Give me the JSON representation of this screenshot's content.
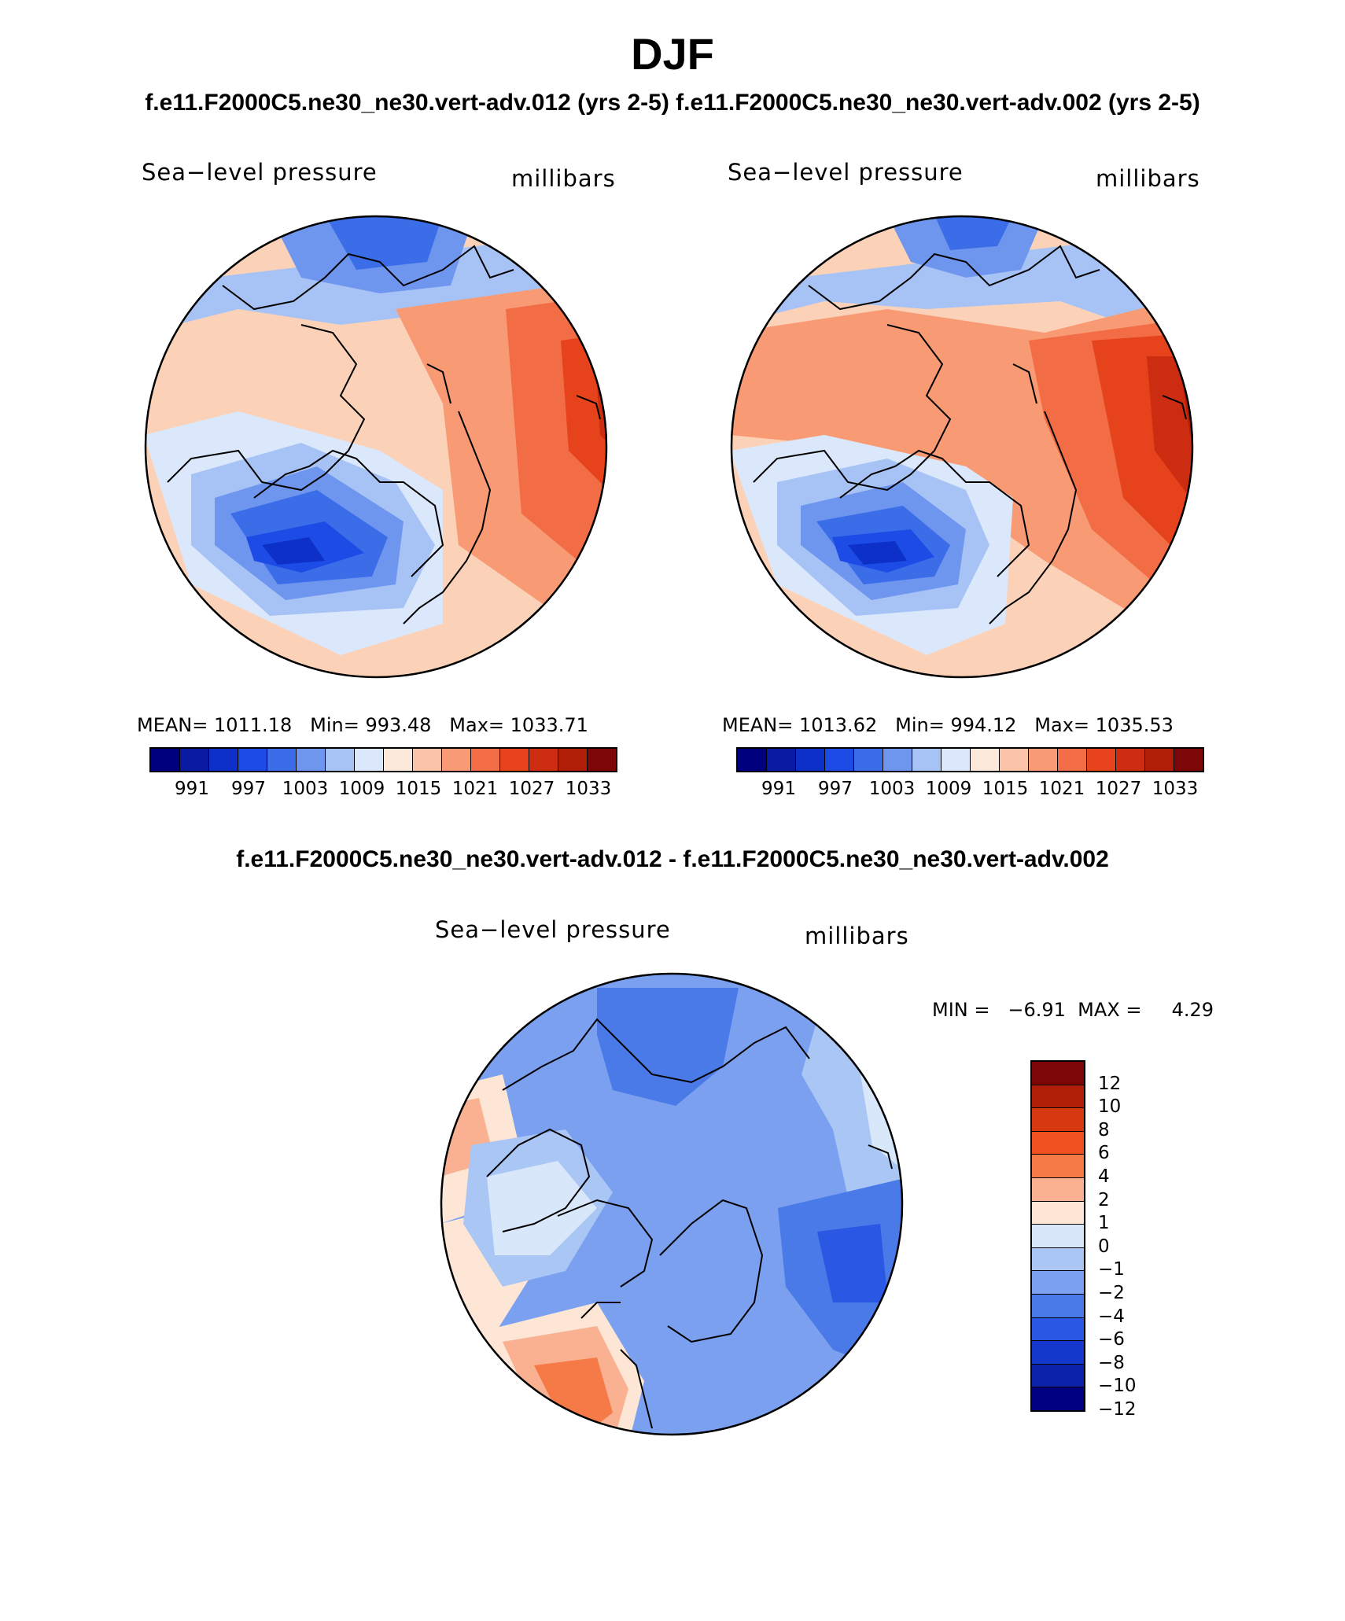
{
  "figure": {
    "season": "DJF",
    "pair_title": "f.e11.F2000C5.ne30_ne30.vert-adv.012 (yrs 2-5)  f.e11.F2000C5.ne30_ne30.vert-adv.002 (yrs 2-5)",
    "diff_title": "f.e11.F2000C5.ne30_ne30.vert-adv.012 - f.e11.F2000C5.ne30_ne30.vert-adv.002"
  },
  "panels": {
    "left": {
      "variable": "Sea−level pressure",
      "units": "millibars",
      "stats": "MEAN= 1011.18   Min= 993.48   Max= 1033.71"
    },
    "right": {
      "variable": "Sea−level pressure",
      "units": "millibars",
      "stats": "MEAN= 1013.62   Min= 994.12   Max= 1035.53"
    },
    "diff": {
      "variable": "Sea−level pressure",
      "units": "millibars",
      "stats": "MIN =   −6.91  MAX =     4.29"
    }
  },
  "colorbars": {
    "absolute": {
      "colors": [
        "#00007f",
        "#0a1aa3",
        "#0d30c8",
        "#1d4be6",
        "#3b6de8",
        "#6f96ee",
        "#a7c3f5",
        "#dbe8fb",
        "#fde9d9",
        "#fbc4a8",
        "#f89a73",
        "#f26c46",
        "#e6421c",
        "#cc2d10",
        "#b11e08",
        "#7d0606"
      ],
      "labels": [
        "991",
        "997",
        "1003",
        "1009",
        "1015",
        "1021",
        "1027",
        "1033"
      ]
    },
    "difference": {
      "colors": [
        "#7d0606",
        "#b11e08",
        "#d6380f",
        "#f0501f",
        "#f57a48",
        "#f9b192",
        "#fde6d6",
        "#d9e7fb",
        "#aac6f5",
        "#7aa0ef",
        "#4a79e8",
        "#2a57e4",
        "#1437cc",
        "#0c22aa",
        "#000080"
      ],
      "labels": [
        "12",
        "10",
        "8",
        "6",
        "4",
        "2",
        "1",
        "0",
        "−1",
        "−2",
        "−4",
        "−6",
        "−8",
        "−10",
        "−12"
      ]
    }
  },
  "chart_data": [
    {
      "type": "heatmap",
      "title": "Sea−level pressure",
      "units": "millibars",
      "case": "f.e11.F2000C5.ne30_ne30.vert-adv.012 (yrs 2-5)",
      "mean": 1011.18,
      "min": 993.48,
      "max": 1033.71,
      "contour_levels": [
        991,
        994,
        997,
        1000,
        1003,
        1006,
        1009,
        1012,
        1015,
        1018,
        1021,
        1024,
        1027,
        1030,
        1033
      ]
    },
    {
      "type": "heatmap",
      "title": "Sea−level pressure",
      "units": "millibars",
      "case": "f.e11.F2000C5.ne30_ne30.vert-adv.002 (yrs 2-5)",
      "mean": 1013.62,
      "min": 994.12,
      "max": 1035.53,
      "contour_levels": [
        991,
        994,
        997,
        1000,
        1003,
        1006,
        1009,
        1012,
        1015,
        1018,
        1021,
        1024,
        1027,
        1030,
        1033
      ]
    },
    {
      "type": "heatmap",
      "title": "Sea−level pressure",
      "units": "millibars",
      "case": "f.e11.F2000C5.ne30_ne30.vert-adv.012 - f.e11.F2000C5.ne30_ne30.vert-adv.002",
      "min": -6.91,
      "max": 4.29,
      "contour_levels": [
        -12,
        -10,
        -8,
        -6,
        -4,
        -2,
        -1,
        0,
        1,
        2,
        4,
        6,
        8,
        10,
        12
      ]
    }
  ]
}
